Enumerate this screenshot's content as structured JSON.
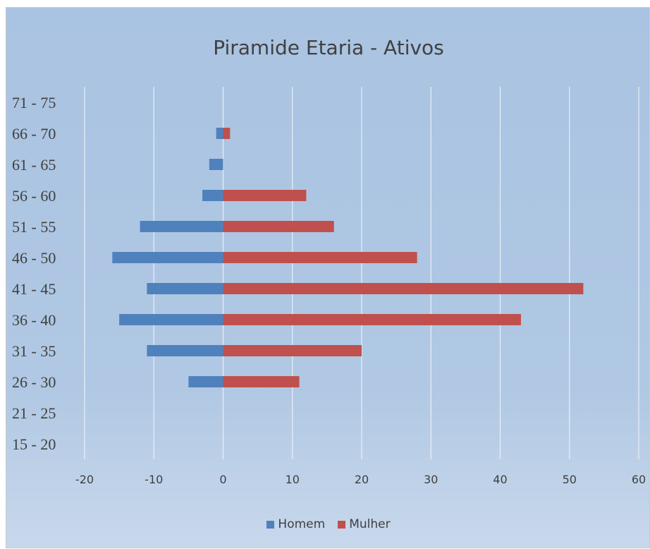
{
  "chart_data": {
    "type": "bar",
    "orientation": "horizontal",
    "title": "Piramide Etaria - Ativos",
    "categories": [
      "15 - 20",
      "21 - 25",
      "26 - 30",
      "31 - 35",
      "36 - 40",
      "41 - 45",
      "46 - 50",
      "51 - 55",
      "56 - 60",
      "61 - 65",
      "66 - 70",
      "71 - 75"
    ],
    "series": [
      {
        "name": "Homem",
        "color": "#4f81bd",
        "values": [
          0,
          0,
          -5,
          -11,
          -15,
          -11,
          -16,
          -12,
          -3,
          -2,
          -1,
          0
        ]
      },
      {
        "name": "Mulher",
        "color": "#c0504d",
        "values": [
          0,
          0,
          11,
          20,
          43,
          52,
          28,
          16,
          12,
          0,
          1,
          0
        ]
      }
    ],
    "xlim": [
      -20,
      60
    ],
    "xticks": [
      -20,
      -10,
      0,
      10,
      20,
      30,
      40,
      50,
      60
    ],
    "grid": true,
    "legend": "bottom",
    "xlabel": "",
    "ylabel": ""
  }
}
